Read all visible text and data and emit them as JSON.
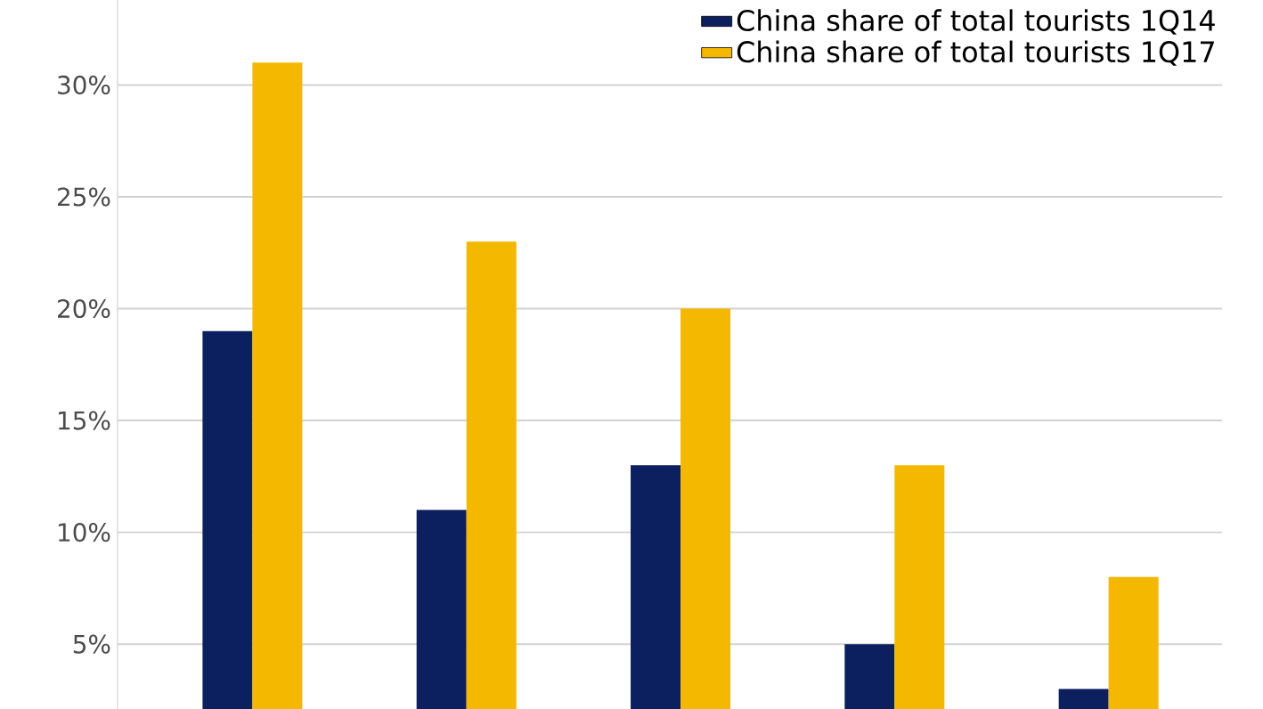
{
  "chart_data": {
    "type": "bar",
    "categories": [
      null,
      null,
      null,
      null,
      null
    ],
    "series": [
      {
        "name": "China share of total tourists 1Q14",
        "color": "#0c1f5e",
        "values": [
          19,
          11,
          13,
          5,
          3
        ]
      },
      {
        "name": "China share of total tourists 1Q17",
        "color": "#f5b800",
        "values": [
          31,
          23,
          20,
          13,
          8
        ]
      }
    ],
    "ylim": [
      2.1,
      33.8
    ],
    "yticks": [
      {
        "value": 5,
        "label": "5%"
      },
      {
        "value": 10,
        "label": "10%"
      },
      {
        "value": 15,
        "label": "15%"
      },
      {
        "value": 20,
        "label": "20%"
      },
      {
        "value": 25,
        "label": "25%"
      },
      {
        "value": 30,
        "label": "30%"
      }
    ],
    "grid": "y",
    "legend": "top right",
    "tick_labels": "y"
  }
}
